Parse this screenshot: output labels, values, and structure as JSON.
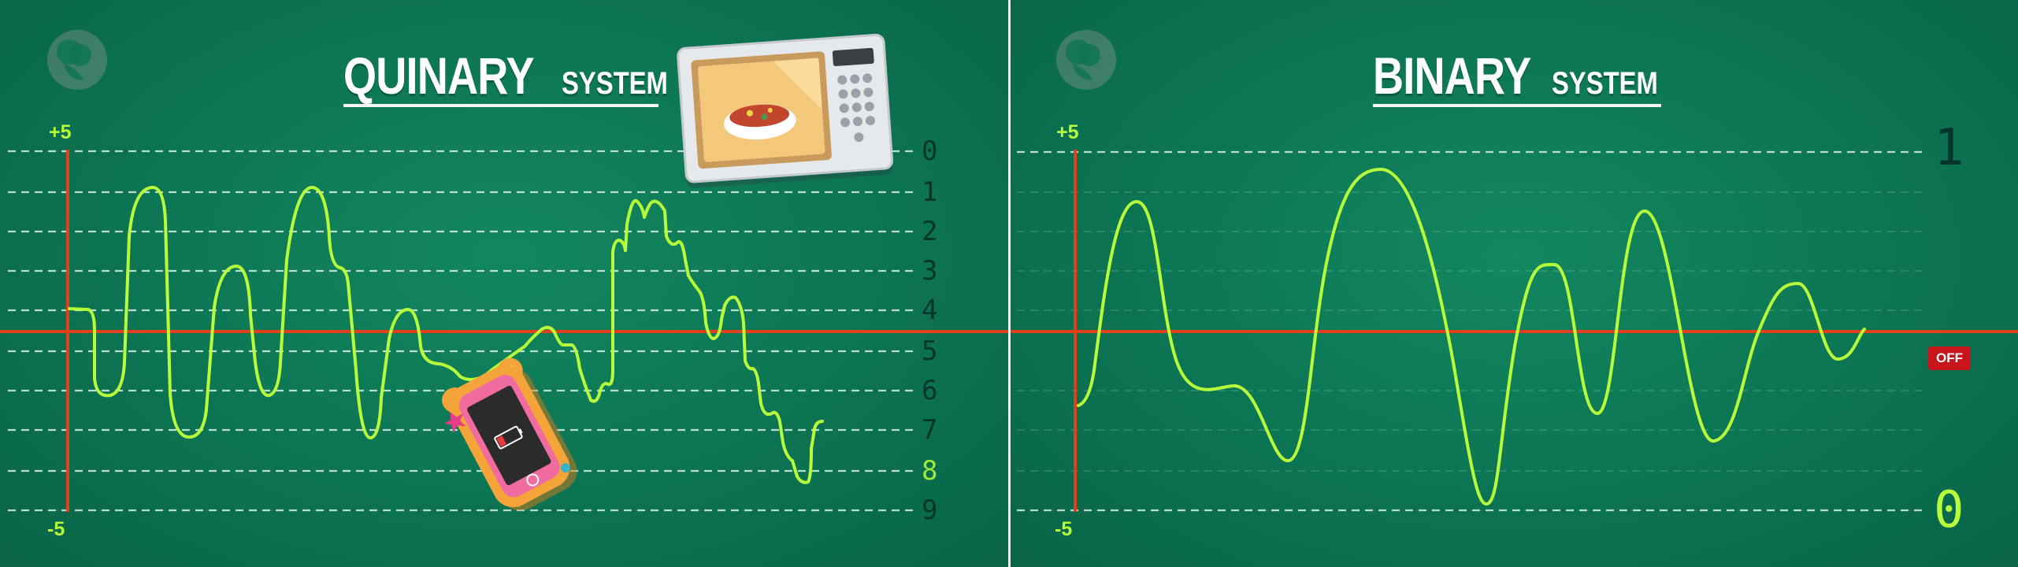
{
  "left_panel": {
    "title_big": "QUINARY",
    "title_small": "SYSTEM",
    "axis_top_label": "+5",
    "axis_bottom_label": "-5",
    "level_labels": [
      "0",
      "1",
      "2",
      "3",
      "4",
      "5",
      "6",
      "7",
      "8",
      "9"
    ],
    "highlighted_level": "8",
    "illustrations": [
      "microwave-with-food-bowl",
      "phone-in-bear-case-with-low-battery"
    ]
  },
  "right_panel": {
    "title_big": "BINARY",
    "title_small": "SYSTEM",
    "axis_top_label": "+5",
    "axis_bottom_label": "-5",
    "top_value": "1",
    "bottom_value": "0",
    "off_badge": "OFF"
  },
  "colors": {
    "background": "#0c7453",
    "gridline": "#cfe9dd",
    "axis": "#e1401c",
    "signal": "#b6ff3a",
    "badge": "#c8151b"
  }
}
